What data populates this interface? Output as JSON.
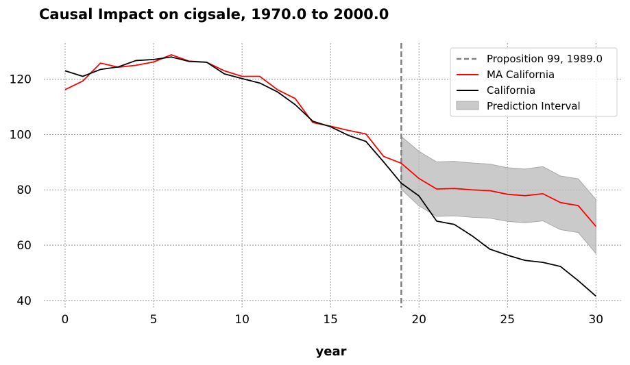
{
  "chart_data": {
    "type": "line",
    "title": "Causal Impact on cigsale, 1970.0 to 2000.0",
    "xlabel": "year",
    "ylabel": "",
    "xlim": [
      -1.2,
      31.5
    ],
    "ylim": [
      37.5,
      133
    ],
    "xticks": [
      0,
      5,
      10,
      15,
      20,
      25,
      30
    ],
    "yticks": [
      40,
      60,
      80,
      100,
      120
    ],
    "grid": true,
    "legend_position": "top-right",
    "intervention": {
      "label": "Proposition 99, 1989.0",
      "x": 19,
      "color": "#808080"
    },
    "x": [
      0,
      1,
      2,
      3,
      4,
      5,
      6,
      7,
      8,
      9,
      10,
      11,
      12,
      13,
      14,
      15,
      16,
      17,
      18,
      19,
      20,
      21,
      22,
      23,
      24,
      25,
      26,
      27,
      28,
      29,
      30
    ],
    "series": [
      {
        "name": "MA California",
        "color": "#ff0000",
        "values": [
          116.2,
          119.3,
          125.8,
          124.3,
          125,
          126.2,
          128.8,
          126.5,
          126.1,
          123,
          121,
          121,
          116.2,
          113,
          104.3,
          103,
          101.5,
          100.2,
          92.1,
          89.6,
          84.1,
          80.3,
          80.5,
          80,
          79.7,
          78.4,
          77.9,
          78.6,
          75.4,
          74.3,
          66.8
        ]
      },
      {
        "name": "California",
        "color": "#000000",
        "values": [
          123,
          121,
          123.5,
          124.4,
          126.7,
          127.1,
          128,
          126.4,
          126.1,
          121.9,
          120.2,
          118.6,
          115.4,
          110.8,
          104.8,
          102.8,
          99.7,
          97.5,
          90.1,
          82.4,
          77.8,
          68.7,
          67.5,
          63.4,
          58.6,
          56.4,
          54.5,
          53.8,
          52.3,
          47.2,
          41.6
        ]
      }
    ],
    "interval": {
      "name": "Prediction Interval",
      "color": "#c0c0c0",
      "x": [
        19,
        20,
        21,
        22,
        23,
        24,
        25,
        26,
        27,
        28,
        29,
        30
      ],
      "upper": [
        99.3,
        93.9,
        90.1,
        90.3,
        89.7,
        89.3,
        88,
        87.5,
        88.4,
        85,
        84,
        76.5
      ],
      "lower": [
        80.2,
        74.2,
        70.4,
        70.6,
        70.1,
        69.8,
        68.6,
        68.1,
        68.8,
        65.6,
        64.6,
        57
      ]
    }
  }
}
